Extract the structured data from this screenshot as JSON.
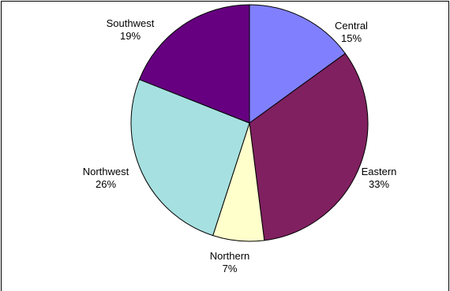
{
  "chart_data": {
    "type": "pie",
    "title": "",
    "legend": "none",
    "start_angle_deg": 90,
    "direction": "clockwise",
    "slices": [
      {
        "label": "Central",
        "value": 15,
        "value_label": "15%",
        "color": "#8080FF"
      },
      {
        "label": "Eastern",
        "value": 33,
        "value_label": "33%",
        "color": "#802060"
      },
      {
        "label": "Northern",
        "value": 7,
        "value_label": "7%",
        "color": "#FFFFCC"
      },
      {
        "label": "Northwest",
        "value": 26,
        "value_label": "26%",
        "color": "#A6E0E0"
      },
      {
        "label": "Southwest",
        "value": 19,
        "value_label": "19%",
        "color": "#660080"
      }
    ]
  }
}
